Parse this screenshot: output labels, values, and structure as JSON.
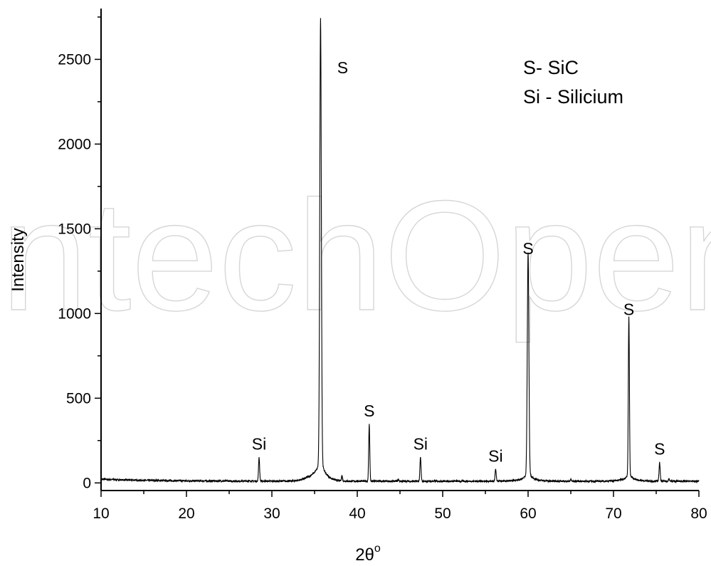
{
  "watermark": "IntechOpen",
  "chart_data": {
    "type": "line",
    "title": "",
    "xlabel": "2θ",
    "xlabel_sup": "o",
    "ylabel": "Intensity",
    "xlim": [
      10,
      80
    ],
    "ylim": [
      -45,
      2800
    ],
    "x_ticks": [
      10,
      20,
      30,
      40,
      50,
      60,
      70,
      80
    ],
    "x_tick_labels": [
      "10",
      "20",
      "30",
      "40",
      "50",
      "60",
      "70",
      "80"
    ],
    "y_ticks": [
      0,
      500,
      1000,
      1500,
      2000,
      2500
    ],
    "y_tick_labels": [
      "0",
      "500",
      "1000",
      "1500",
      "2000",
      "2500"
    ],
    "grid": false,
    "legend": {
      "placement": "top-right",
      "entries": [
        "S- SiC",
        "Si - Silicium"
      ]
    },
    "baseline": 10,
    "series": [
      {
        "peaks": [
          {
            "x": 28.5,
            "y": 150,
            "label": "Si"
          },
          {
            "x": 35.7,
            "y": 2610,
            "label": "S"
          },
          {
            "x": 38.2,
            "y": 40,
            "label": ""
          },
          {
            "x": 41.4,
            "y": 345,
            "label": "S"
          },
          {
            "x": 44.8,
            "y": 20,
            "label": ""
          },
          {
            "x": 47.4,
            "y": 150,
            "label": "Si"
          },
          {
            "x": 56.2,
            "y": 80,
            "label": "Si"
          },
          {
            "x": 60.0,
            "y": 1305,
            "label": "S"
          },
          {
            "x": 65.0,
            "y": 20,
            "label": ""
          },
          {
            "x": 71.8,
            "y": 945,
            "label": "S"
          },
          {
            "x": 75.4,
            "y": 120,
            "label": "S"
          },
          {
            "x": 76.5,
            "y": 25,
            "label": ""
          }
        ]
      }
    ]
  }
}
